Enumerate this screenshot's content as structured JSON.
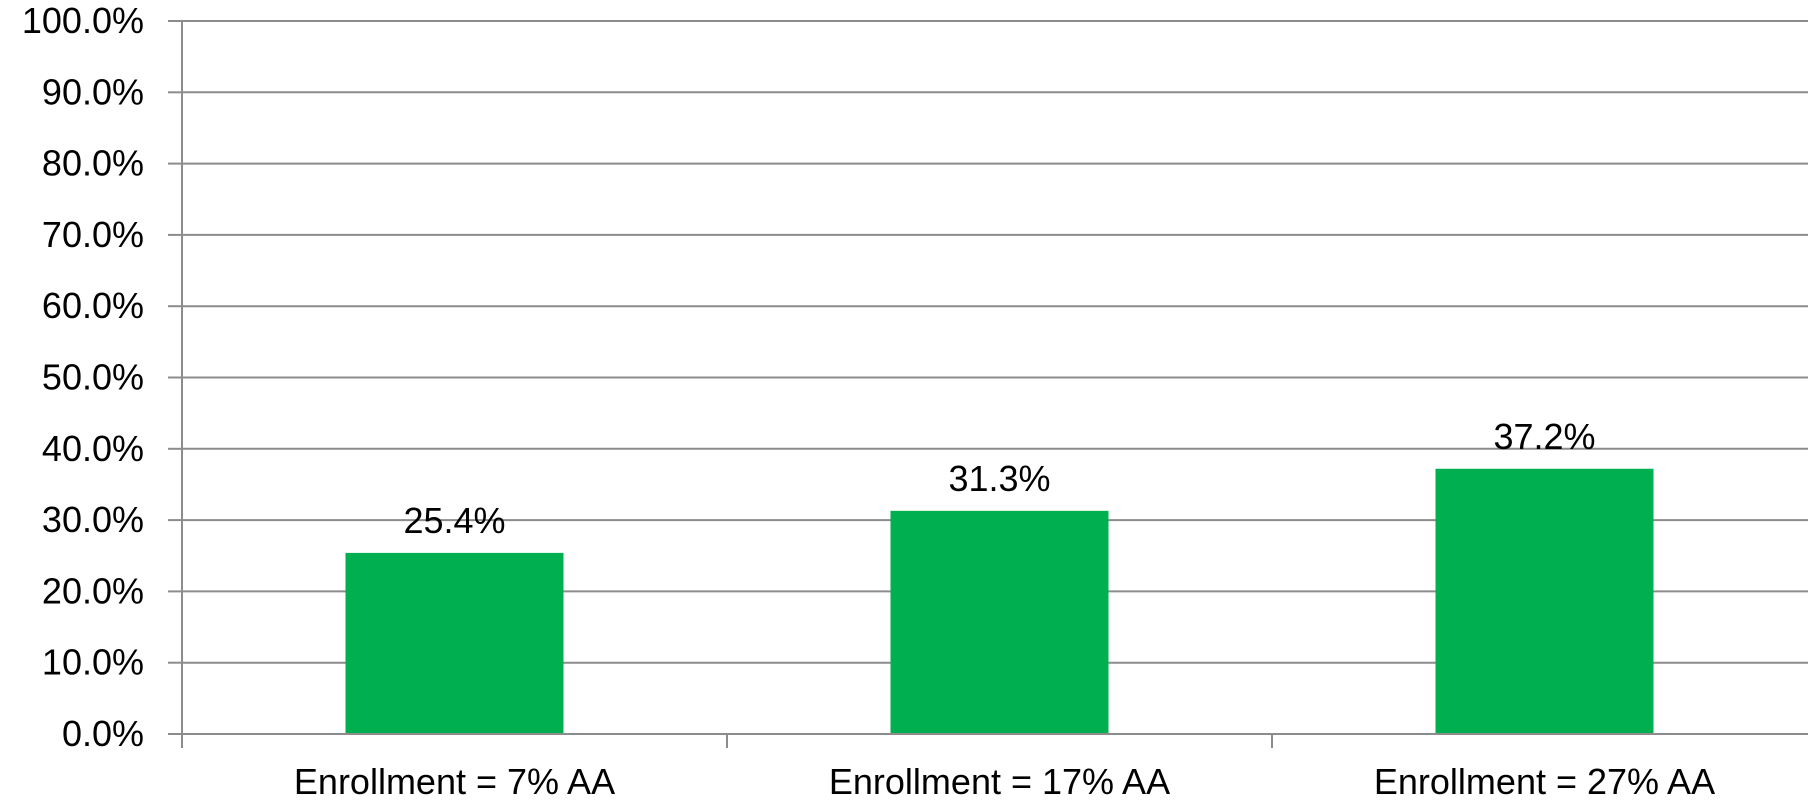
{
  "chart_data": {
    "type": "bar",
    "title": "",
    "xlabel": "",
    "ylabel": "",
    "categories": [
      "Enrollment = 7% AA",
      "Enrollment = 17% AA",
      "Enrollment = 27% AA"
    ],
    "values": [
      25.4,
      31.3,
      37.2
    ],
    "value_labels": [
      "25.4%",
      "31.3%",
      "37.2%"
    ],
    "ylim": [
      0,
      100
    ],
    "y_ticks": [
      0,
      10,
      20,
      30,
      40,
      50,
      60,
      70,
      80,
      90,
      100
    ],
    "y_tick_labels": [
      "0.0%",
      "10.0%",
      "20.0%",
      "30.0%",
      "40.0%",
      "50.0%",
      "60.0%",
      "70.0%",
      "80.0%",
      "90.0%",
      "100.0%"
    ],
    "grid": true,
    "legend": "none",
    "bar_color": "#00b050",
    "gridline_color": "#8c8c8c"
  }
}
